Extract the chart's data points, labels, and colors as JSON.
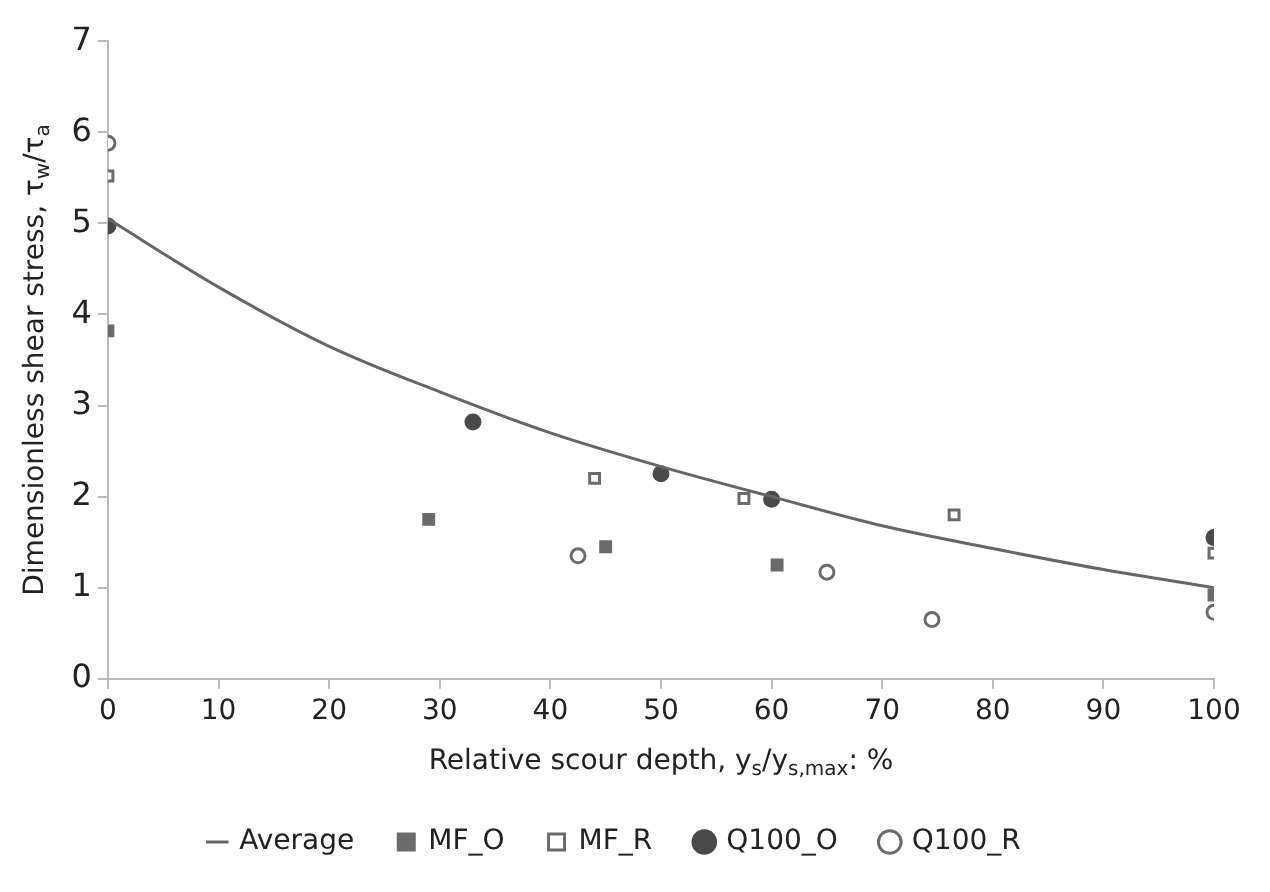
{
  "chart_data": {
    "type": "scatter",
    "xlabel": "Relative scour depth, y$_{s}$/y$_{s,max}$: %",
    "ylabel": "Dimensionless shear stress, τ$_{w}$/τ$_{a}$",
    "xlim": [
      0,
      100
    ],
    "xticks": [
      0,
      10,
      20,
      30,
      40,
      50,
      60,
      70,
      80,
      90,
      100
    ],
    "ylim": [
      0,
      7
    ],
    "yticks": [
      0,
      1,
      2,
      3,
      4,
      5,
      6,
      7
    ],
    "legend": "bottom",
    "series": [
      {
        "name": "Average",
        "type": "line",
        "color": "#666666",
        "marker": "none",
        "line_style": "solid",
        "x": [
          0,
          10,
          20,
          30,
          40,
          50,
          60,
          70,
          80,
          90,
          100
        ],
        "values": [
          5.05,
          4.3,
          3.65,
          3.15,
          2.7,
          2.33,
          2.0,
          1.68,
          1.43,
          1.2,
          1.0
        ]
      },
      {
        "name": "MF_O",
        "color": "#6b6b6b",
        "marker": "square",
        "x": [
          0,
          29,
          45,
          60.5,
          100
        ],
        "values": [
          3.82,
          1.75,
          1.45,
          1.25,
          0.92
        ]
      },
      {
        "name": "MF_R",
        "color": "#6b6b6b",
        "marker": "square",
        "x": [
          0,
          44,
          57.5,
          76.5,
          100
        ],
        "values": [
          5.52,
          2.2,
          1.98,
          1.8,
          1.38
        ]
      },
      {
        "name": "Q100_O",
        "color": "#4a4a4a",
        "marker": "circle",
        "x": [
          0,
          33,
          50,
          60,
          100
        ],
        "values": [
          4.97,
          2.82,
          2.25,
          1.97,
          1.55
        ]
      },
      {
        "name": "Q100_R",
        "color": "#6b6b6b",
        "marker": "circle",
        "x": [
          0,
          42.5,
          65,
          74.5,
          100
        ],
        "values": [
          5.88,
          1.35,
          1.17,
          0.65,
          0.73
        ]
      }
    ]
  }
}
